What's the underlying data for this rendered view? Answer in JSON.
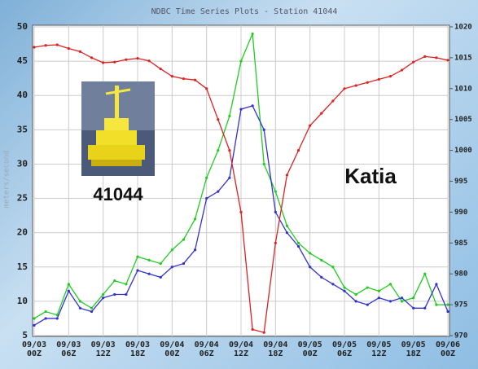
{
  "chart_data": {
    "type": "line",
    "title": "NDBC Time Series Plots - Station 41044",
    "y_label": "meters/second",
    "annotations": [
      "41044",
      "Katia"
    ],
    "categories": [
      "09/03\n00Z",
      null,
      null,
      "09/03\n06Z",
      null,
      null,
      "09/03\n12Z",
      null,
      null,
      "09/03\n18Z",
      null,
      null,
      "09/04\n00Z",
      null,
      null,
      "09/04\n06Z",
      null,
      null,
      "09/04\n12Z",
      null,
      null,
      "09/04\n18Z",
      null,
      null,
      "09/05\n00Z",
      null,
      null,
      "09/05\n06Z",
      null,
      null,
      "09/05\n12Z",
      null,
      null,
      "09/05\n18Z",
      null,
      null,
      "09/06\n00Z"
    ],
    "series": [
      {
        "color": "#22cc22",
        "values": [
          7.5,
          8.5,
          8,
          12.5,
          10,
          9,
          11,
          13,
          12.5,
          16.5,
          16,
          15.5,
          17.5,
          19,
          22,
          28,
          32,
          37,
          45,
          49,
          30,
          26,
          21,
          18.5,
          17,
          16,
          15,
          12,
          11,
          12,
          11.5,
          12.5,
          10,
          10.5,
          14,
          9.5,
          9.5
        ]
      },
      {
        "color": "#3333cc",
        "values": [
          6.5,
          7.5,
          7.5,
          11.5,
          9,
          8.5,
          10.5,
          11,
          11,
          14.5,
          14,
          13.5,
          15,
          15.5,
          17.5,
          25,
          26,
          28,
          38,
          38.5,
          35,
          23,
          20,
          18,
          15,
          13.5,
          12.5,
          11.5,
          10,
          9.5,
          10.5,
          10,
          10.5,
          9,
          9,
          12.5,
          8.5
        ]
      },
      {
        "color": "#dd2222",
        "axis": "y2",
        "values": [
          1016.7,
          1017,
          1017.1,
          1016.5,
          1016,
          1015,
          1014.2,
          1014.3,
          1014.7,
          1014.9,
          1014.5,
          1013.2,
          1012,
          1011.6,
          1011.4,
          1010,
          1005,
          1000,
          990,
          971,
          970.5,
          985,
          996,
          1000,
          1004,
          1006,
          1008,
          1010,
          1010.5,
          1011,
          1011.5,
          1012,
          1013,
          1014.3,
          1015.2,
          1015,
          1014.6
        ]
      }
    ],
    "ylim": [
      5,
      50
    ],
    "yticks": [
      5,
      10,
      15,
      20,
      25,
      30,
      35,
      40,
      45,
      50
    ],
    "y2lim": [
      970,
      1020
    ],
    "y2ticks": [
      970,
      975,
      980,
      985,
      990,
      995,
      1000,
      1005,
      1010,
      1015,
      1020
    ],
    "grid": true
  }
}
